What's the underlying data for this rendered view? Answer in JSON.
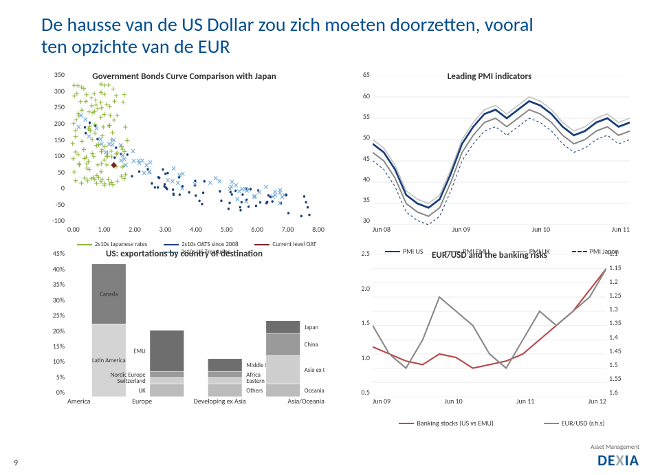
{
  "title_line1": "De hausse van de US Dollar zou zich moeten doorzetten, vooral",
  "title_line2": "ten opzichte van de EUR",
  "page_number": "9",
  "logo_sub": "Asset Management",
  "logo_name": "DEXIA",
  "chart1": {
    "title": "Government Bonds Curve Comparison with Japan",
    "yticks": [
      "350",
      "300",
      "250",
      "200",
      "150",
      "100",
      "50",
      "0",
      "-50",
      "-100"
    ],
    "xticks": [
      "0.00",
      "1.00",
      "2.00",
      "3.00",
      "4.00",
      "5.00",
      "6.00",
      "7.00",
      "8.00"
    ],
    "legend": [
      "2s10s Japanese rates",
      "2s10s OATS since 2008",
      "Current level OAT",
      "2s10s US Treasuries"
    ],
    "lcolors": [
      "#8fb73e",
      "#1a3f7a",
      "#7b2222",
      "#6fa8d8"
    ]
  },
  "chart2": {
    "title": "Leading PMI indicators",
    "yticks": [
      "65",
      "60",
      "55",
      "50",
      "45",
      "40",
      "35",
      "30"
    ],
    "xticks": [
      "Jun 08",
      "Jun 09",
      "Jun 10",
      "Jun 11"
    ],
    "legend": [
      "PMI US",
      "PMI EMU",
      "PMI UK",
      "PMI Japon"
    ],
    "lcolors": [
      "#1a3f7a",
      "#888888",
      "#c2c2c2",
      "#1a3f7a"
    ]
  },
  "chart3": {
    "title": "US: exportations by country of destination",
    "yticks": [
      "45%",
      "40%",
      "35%",
      "30%",
      "25%",
      "20%",
      "15%",
      "10%",
      "5%",
      "0%"
    ],
    "xcats": [
      "America",
      "Europe",
      "Developing ex Asia",
      "Asia/Oceania"
    ],
    "stacks": [
      {
        "labels": [
          "Latin America",
          "Canada"
        ],
        "vals": [
          23,
          19
        ],
        "colors": [
          "#d4d4d4",
          "#808080"
        ]
      },
      {
        "labels": [
          "UK",
          "Switzerland",
          "Nordic Europe",
          "EMU"
        ],
        "vals": [
          4,
          2,
          2,
          13
        ],
        "colors": [
          "#bcbcbc",
          "#cfcfcf",
          "#9a9a9a",
          "#6e6e6e"
        ]
      },
      {
        "labels": [
          "Others",
          "Eastern Europe",
          "Africa",
          "Middle East"
        ],
        "vals": [
          4,
          2,
          2,
          4
        ],
        "colors": [
          "#bcbcbc",
          "#cfcfcf",
          "#9a9a9a",
          "#6e6e6e"
        ]
      },
      {
        "labels": [
          "Oceania",
          "Asia ex China",
          "China",
          "Japan"
        ],
        "vals": [
          4,
          9,
          7,
          4
        ],
        "colors": [
          "#bcbcbc",
          "#cfcfcf",
          "#9a9a9a",
          "#6e6e6e"
        ]
      }
    ]
  },
  "chart4": {
    "title": "EUR/USD and the banking risks",
    "yticks_l": [
      "2.5",
      "2.0",
      "1.5",
      "1.0",
      "0.5"
    ],
    "yticks_r": [
      "1.1",
      "1.15",
      "1.2",
      "1.25",
      "1.3",
      "1.35",
      "1.4",
      "1.45",
      "1.5",
      "1.55",
      "1.6"
    ],
    "xticks": [
      "Jun 09",
      "Jun 10",
      "Jun 11",
      "Jun 12"
    ],
    "legend": [
      "Banking stocks (US vs EMU)",
      "EUR/USD (r.h.s)"
    ],
    "lcolors": [
      "#b84a4a",
      "#888888"
    ]
  }
}
